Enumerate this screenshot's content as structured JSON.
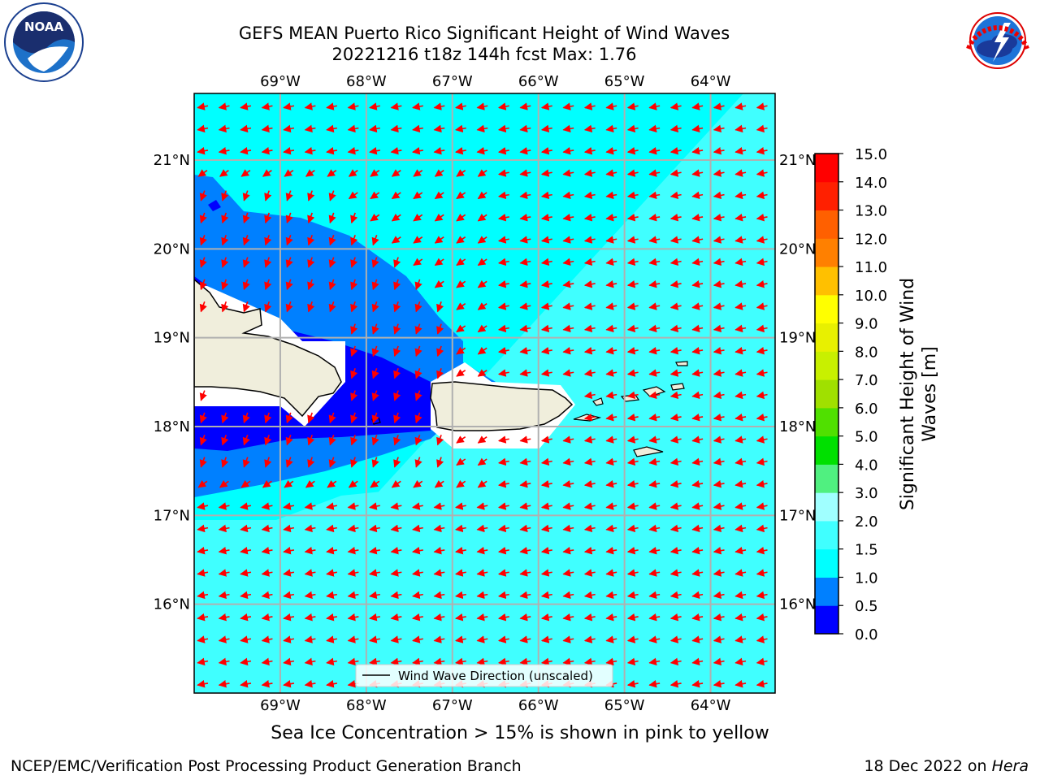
{
  "header": {
    "title": "GEFS MEAN Puerto Rico Significant Height of Wind Waves",
    "subtitle": "20221216 t18z 144h fcst   Max: 1.76"
  },
  "logos": {
    "left": {
      "text": "NOAA",
      "ring": "NATIONAL OCEANIC AND ATMOSPHERIC ADMINISTRATION · U.S. DEPARTMENT OF COMMERCE"
    },
    "right": {
      "ring": "NATIONAL WEATHER SERVICE"
    }
  },
  "map": {
    "lon_range": [
      -70.0,
      -63.25
    ],
    "lat_range": [
      15.0,
      21.75
    ],
    "lon_ticks": [
      {
        "value": -69,
        "label": "69°W"
      },
      {
        "value": -68,
        "label": "68°W"
      },
      {
        "value": -67,
        "label": "67°W"
      },
      {
        "value": -66,
        "label": "66°W"
      },
      {
        "value": -65,
        "label": "65°W"
      },
      {
        "value": -64,
        "label": "64°W"
      }
    ],
    "lat_ticks": [
      {
        "value": 21,
        "label": "21°N"
      },
      {
        "value": 20,
        "label": "20°N"
      },
      {
        "value": 19,
        "label": "19°N"
      },
      {
        "value": 18,
        "label": "18°N"
      },
      {
        "value": 17,
        "label": "17°N"
      },
      {
        "value": 16,
        "label": "16°N"
      }
    ],
    "legend": "Wind Wave Direction (unscaled)",
    "colors": {
      "ocean_base": "#00ffff",
      "band_0_0_5": "#0000ff",
      "band_0_5_1": "#0080ff",
      "band_1_5_2": "#40ffff",
      "band_2_3": "#a0ffff",
      "land": "#f0eedc",
      "arrow": "#ff0000",
      "grid": "#b0b0b0"
    },
    "arrow_field": {
      "spacing_deg": 0.25,
      "easterly_deg": 190,
      "northeasterly_deg": 250
    }
  },
  "colorbar": {
    "label": "Significant Height of Wind Waves [m]",
    "label_line1": "Significant Height of Wind",
    "label_line2": "Waves [m]",
    "levels": [
      0.0,
      0.5,
      1.0,
      1.5,
      2.0,
      3.0,
      4.0,
      5.0,
      6.0,
      7.0,
      8.0,
      9.0,
      10.0,
      11.0,
      12.0,
      13.0,
      14.0,
      15.0
    ],
    "tick_labels": [
      "0.0",
      "0.5",
      "1.0",
      "1.5",
      "2.0",
      "3.0",
      "4.0",
      "5.0",
      "6.0",
      "7.0",
      "8.0",
      "9.0",
      "10.0",
      "11.0",
      "12.0",
      "13.0",
      "14.0",
      "15.0"
    ],
    "colors": [
      "#0000ff",
      "#0080ff",
      "#00ffff",
      "#40ffff",
      "#a0ffff",
      "#50f080",
      "#00e000",
      "#50e000",
      "#a0e000",
      "#c8f000",
      "#e8f000",
      "#ffff00",
      "#ffc000",
      "#ff8000",
      "#ff6000",
      "#ff2000",
      "#ff0000"
    ]
  },
  "footer": {
    "caption": "Sea Ice Concentration > 15% is shown in pink to yellow",
    "credit": "NCEP/EMC/Verification Post Processing Product Generation Branch",
    "date_prefix": "18 Dec 2022 on ",
    "machine": "Hera"
  }
}
